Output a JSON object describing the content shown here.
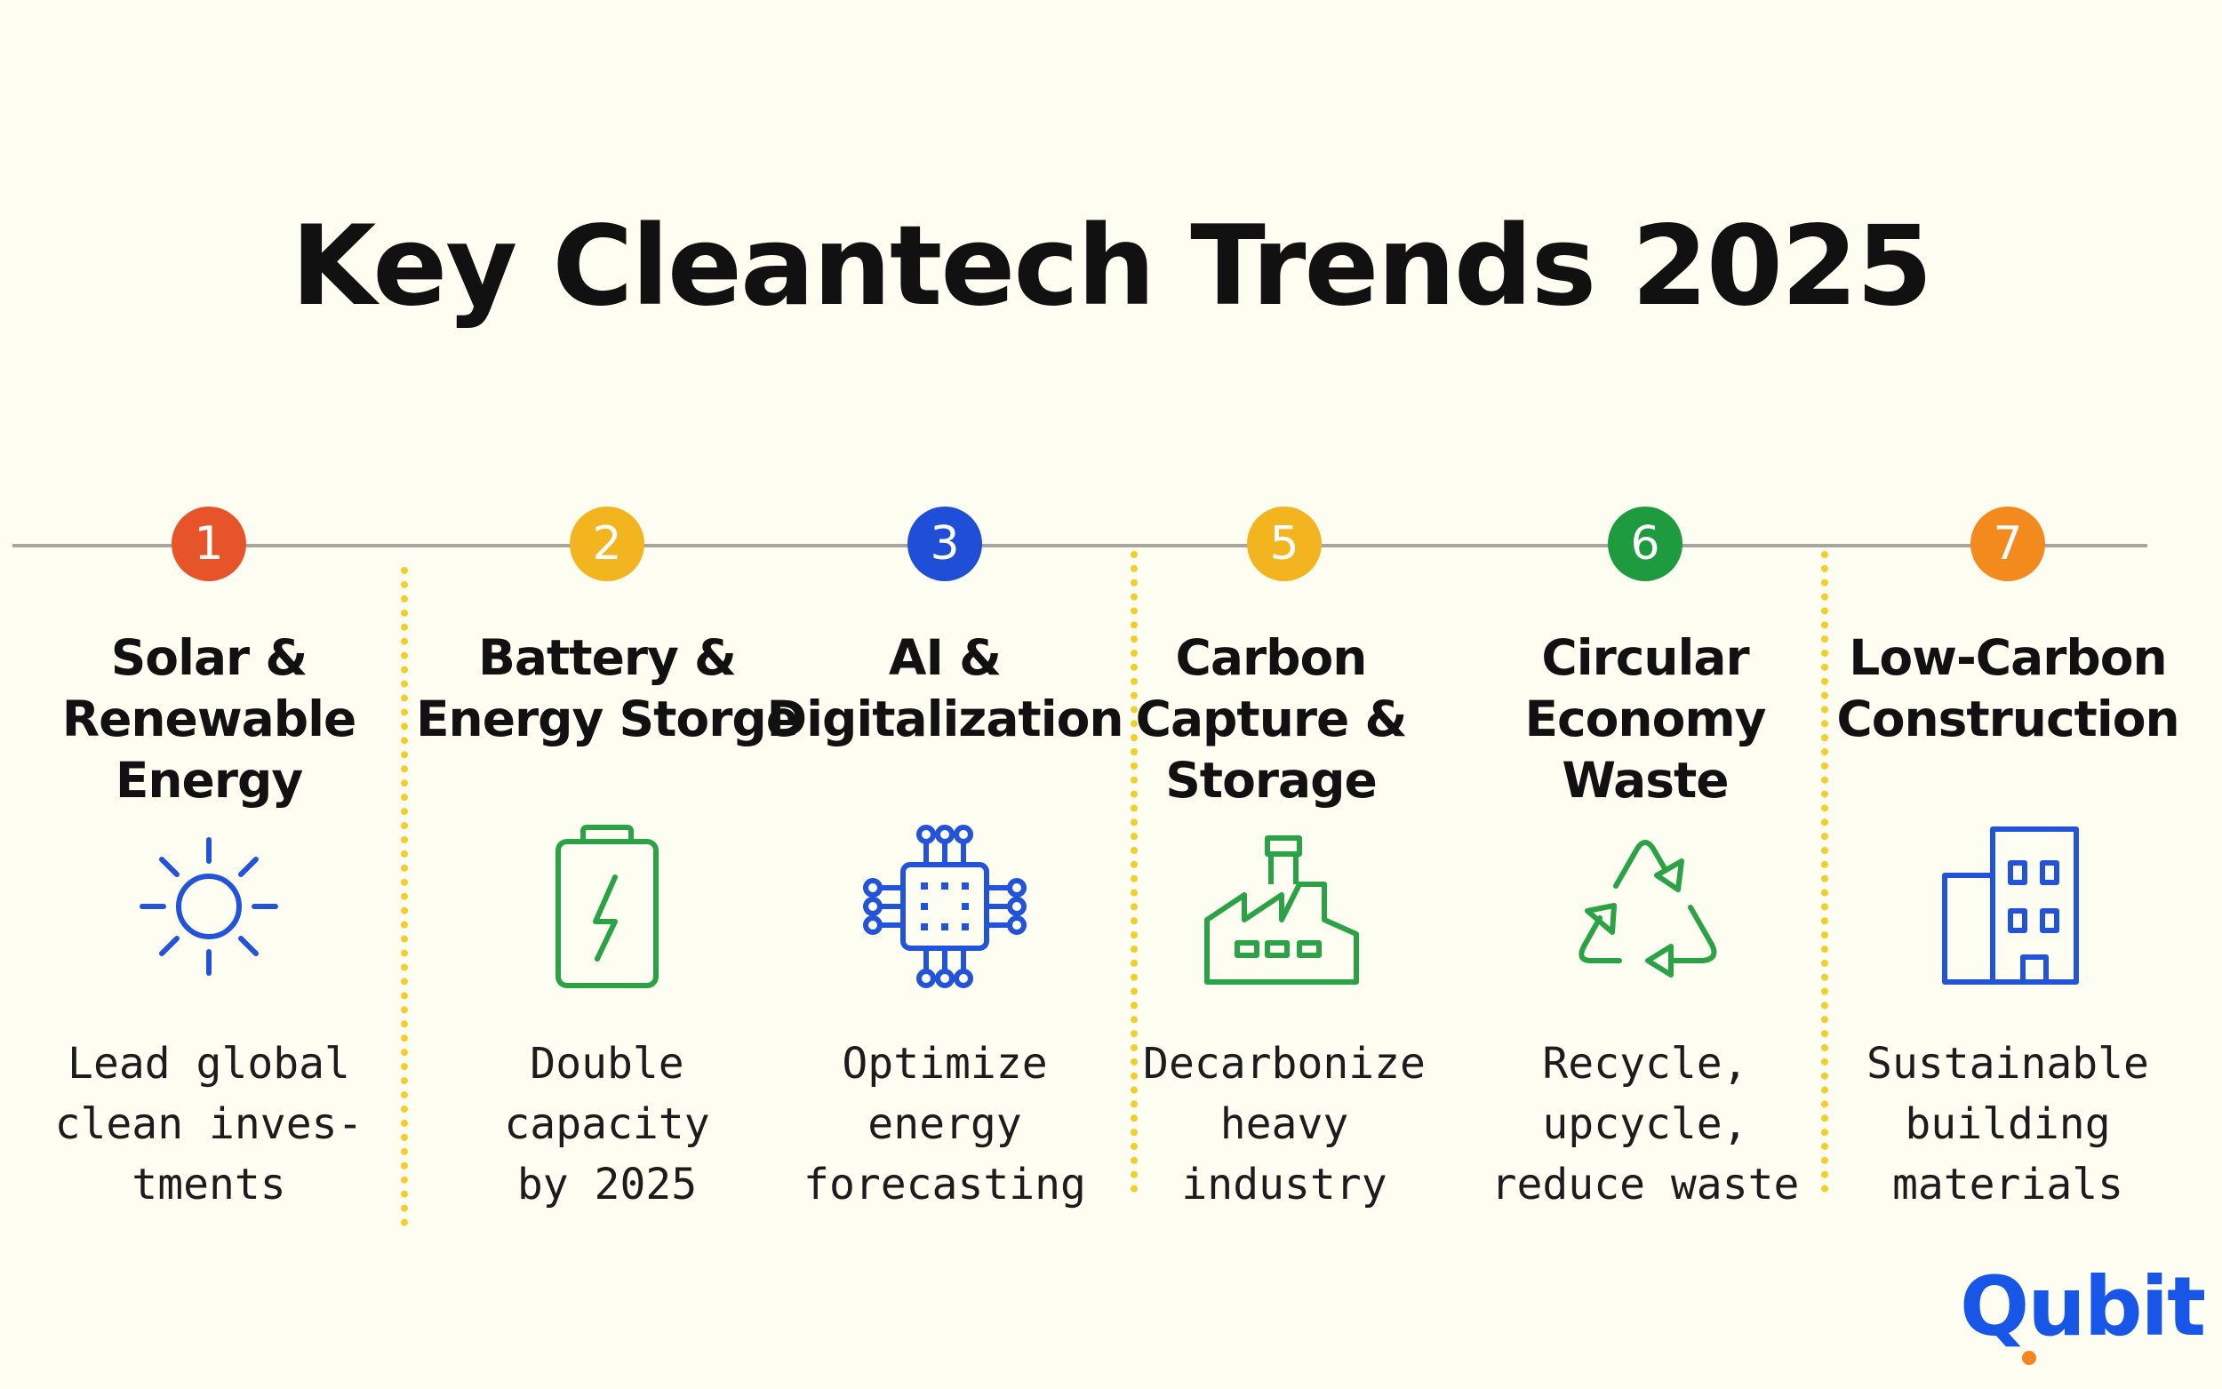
{
  "title": "Key Cleantech Trends 2025",
  "brand": {
    "logo_text": "Qubit",
    "logo_color": "#1856E8",
    "dot_color": "#F5861F"
  },
  "trends": [
    {
      "number": "1",
      "badge_color": "#E8542A",
      "title_lines": [
        "Solar &",
        "Renewable",
        "Energy"
      ],
      "icon": "sun-icon",
      "icon_color": "#2353D8",
      "desc_lines": [
        "Lead global",
        "clean inves-",
        "tments"
      ]
    },
    {
      "number": "2",
      "badge_color": "#F3B51F",
      "title_lines": [
        "Battery &",
        "Energy Storge"
      ],
      "icon": "battery-icon",
      "icon_color": "#2BA245",
      "desc_lines": [
        "Double",
        "capacity",
        "by 2025"
      ]
    },
    {
      "number": "3",
      "badge_color": "#1F4FD6",
      "title_lines": [
        "AI &",
        "Digitalization"
      ],
      "icon": "chip-icon",
      "icon_color": "#2353D8",
      "desc_lines": [
        "Optimize",
        "energy",
        "forecasting"
      ]
    },
    {
      "number": "5",
      "badge_color": "#F3B51F",
      "title_lines": [
        "Carbon",
        "Capture &",
        "Storage"
      ],
      "icon": "factory-icon",
      "icon_color": "#2BA245",
      "desc_lines": [
        "Decarbonize",
        "heavy",
        "industry"
      ]
    },
    {
      "number": "6",
      "badge_color": "#1E9B3F",
      "title_lines": [
        "Circular",
        "Economy",
        "Waste"
      ],
      "icon": "recycle-icon",
      "icon_color": "#2BA245",
      "desc_lines": [
        "Recycle,",
        "upcycle,",
        "reduce waste"
      ]
    },
    {
      "number": "7",
      "badge_color": "#F38A1E",
      "title_lines": [
        "Low-Carbon",
        "Construction"
      ],
      "icon": "building-icon",
      "icon_color": "#2353D8",
      "desc_lines": [
        "Sustainable",
        "building",
        "materials"
      ]
    }
  ]
}
